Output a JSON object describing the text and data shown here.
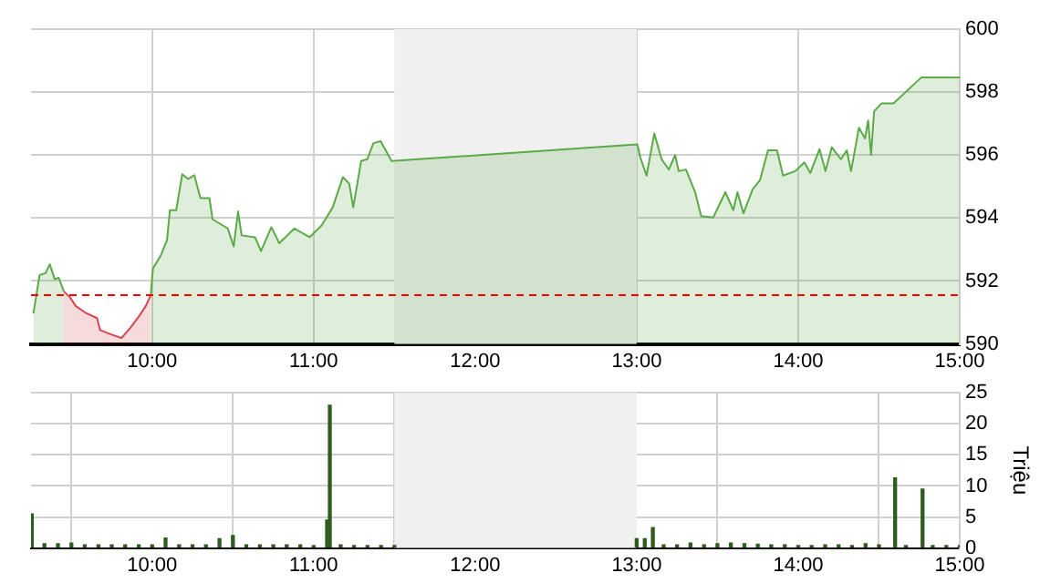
{
  "chart_data": [
    {
      "type": "area",
      "xlim": [
        9.25,
        15
      ],
      "xticks": [
        {
          "value": 10,
          "label": "10:00"
        },
        {
          "value": 11,
          "label": "11:00"
        },
        {
          "value": 12,
          "label": "12:00"
        },
        {
          "value": 13,
          "label": "13:00"
        },
        {
          "value": 14,
          "label": "14:00"
        },
        {
          "value": 15,
          "label": "15:00"
        }
      ],
      "ylim": [
        590,
        600
      ],
      "yticks": [
        590,
        592,
        594,
        596,
        598,
        600
      ],
      "grid": true,
      "legend": false,
      "marker": "none",
      "line_style": "solid",
      "bands": [
        {
          "axis": "x",
          "from": 11.5,
          "to": 13,
          "color": "#f0f0f0"
        }
      ],
      "ref_lines": [
        {
          "axis": "y",
          "value": 591.55,
          "color": "#ff0000",
          "line_style": "dashed"
        }
      ],
      "series": [
        {
          "color": "#5aaa46",
          "x": [
            9.265,
            9.303,
            9.34,
            9.366,
            9.397,
            9.422,
            9.453
          ],
          "values": [
            590.97,
            592.19,
            592.25,
            592.53,
            592.06,
            592.1,
            591.67
          ]
        },
        {
          "color": "#d64550",
          "x": [
            9.453,
            9.49,
            9.528,
            9.585,
            9.659,
            9.678,
            9.754,
            9.81,
            9.867,
            9.923,
            9.96,
            9.991
          ],
          "values": [
            591.67,
            591.49,
            591.2,
            591.0,
            590.82,
            590.44,
            590.29,
            590.19,
            590.53,
            590.91,
            591.2,
            591.54
          ]
        },
        {
          "color": "#5aaa46",
          "x": [
            9.991,
            10.005,
            10.054,
            10.092,
            10.11,
            10.149,
            10.186,
            10.223,
            10.261,
            10.299,
            10.355,
            10.374,
            10.468,
            10.505,
            10.532,
            10.554,
            10.637,
            10.674,
            10.738,
            10.787,
            10.881,
            10.975,
            11.05,
            11.118,
            11.181,
            11.22,
            11.245,
            11.294,
            11.332,
            11.37,
            11.415,
            11.482,
            13.004,
            13.023,
            13.061,
            13.109,
            13.154,
            13.199,
            13.238,
            13.26,
            13.305,
            13.362,
            13.399,
            13.474,
            13.549,
            13.598,
            13.624,
            13.661,
            13.718,
            13.763,
            13.813,
            13.869,
            13.906,
            13.982,
            14.038,
            14.075,
            14.132,
            14.169,
            14.208,
            14.264,
            14.301,
            14.327,
            14.376,
            14.414,
            14.433,
            14.451,
            14.47,
            14.515,
            14.59,
            14.763,
            15.0
          ],
          "values": [
            591.54,
            592.4,
            592.82,
            593.3,
            594.25,
            594.25,
            595.39,
            595.24,
            595.36,
            594.63,
            594.63,
            593.96,
            593.67,
            593.1,
            594.21,
            593.45,
            593.39,
            592.95,
            593.71,
            593.2,
            593.67,
            593.39,
            593.77,
            594.34,
            595.3,
            595.1,
            594.34,
            595.81,
            595.87,
            596.38,
            596.44,
            595.81,
            596.34,
            595.92,
            595.35,
            596.69,
            595.87,
            595.54,
            596.0,
            595.49,
            595.54,
            594.82,
            594.06,
            594.02,
            594.82,
            594.25,
            594.82,
            594.15,
            594.91,
            595.2,
            596.15,
            596.15,
            595.35,
            595.49,
            595.77,
            595.43,
            596.19,
            595.49,
            596.25,
            595.87,
            596.15,
            595.49,
            596.87,
            596.53,
            597.1,
            596.0,
            597.39,
            597.64,
            597.64,
            598.47,
            598.47
          ]
        }
      ]
    },
    {
      "type": "bar",
      "ylabel": "Triệu",
      "xlim": [
        9.25,
        15
      ],
      "xticks": [
        {
          "value": 10,
          "label": "10:00"
        },
        {
          "value": 11,
          "label": "11:00"
        },
        {
          "value": 12,
          "label": "12:00"
        },
        {
          "value": 13,
          "label": "13:00"
        },
        {
          "value": 14,
          "label": "14:00"
        },
        {
          "value": 15,
          "label": "15:00"
        }
      ],
      "ylim": [
        0,
        25
      ],
      "yticks": [
        0,
        5,
        10,
        15,
        20,
        25
      ],
      "grid": true,
      "legend": false,
      "bands": [
        {
          "axis": "x",
          "from": 11.5,
          "to": 13,
          "color": "#f0f0f0"
        }
      ],
      "series": [
        {
          "color": "#2e5e1e",
          "x": [
            9.255,
            9.333,
            9.417,
            9.5,
            9.583,
            9.667,
            9.75,
            9.833,
            9.917,
            10.0,
            10.083,
            10.167,
            10.25,
            10.333,
            10.417,
            10.5,
            10.583,
            10.667,
            10.75,
            10.833,
            10.917,
            11.0,
            11.083,
            11.1,
            11.167,
            11.25,
            11.333,
            11.417,
            11.5,
            13.0,
            13.05,
            13.1,
            13.167,
            13.25,
            13.333,
            13.417,
            13.5,
            13.583,
            13.667,
            13.75,
            13.833,
            13.917,
            14.0,
            14.083,
            14.167,
            14.25,
            14.333,
            14.417,
            14.5,
            14.6,
            14.667,
            14.77,
            14.833,
            14.917,
            15.0
          ],
          "values": [
            5.5,
            0.7,
            0.7,
            0.8,
            0.5,
            0.5,
            0.5,
            0.5,
            0.5,
            0.5,
            1.6,
            0.5,
            0.5,
            0.5,
            1.5,
            2,
            0.5,
            0.5,
            0.5,
            0.5,
            0.5,
            0.4,
            4.5,
            23,
            0.5,
            0.4,
            0.4,
            0.4,
            0.4,
            1.5,
            1.5,
            3.3,
            0.5,
            0.5,
            0.8,
            0.5,
            0.7,
            0.8,
            0.7,
            0.6,
            0.5,
            0.5,
            0.4,
            0.4,
            0.5,
            0.5,
            0.4,
            0.7,
            0.5,
            11.3,
            0.4,
            9.5,
            0.4,
            0.4,
            0.4
          ]
        }
      ]
    }
  ]
}
